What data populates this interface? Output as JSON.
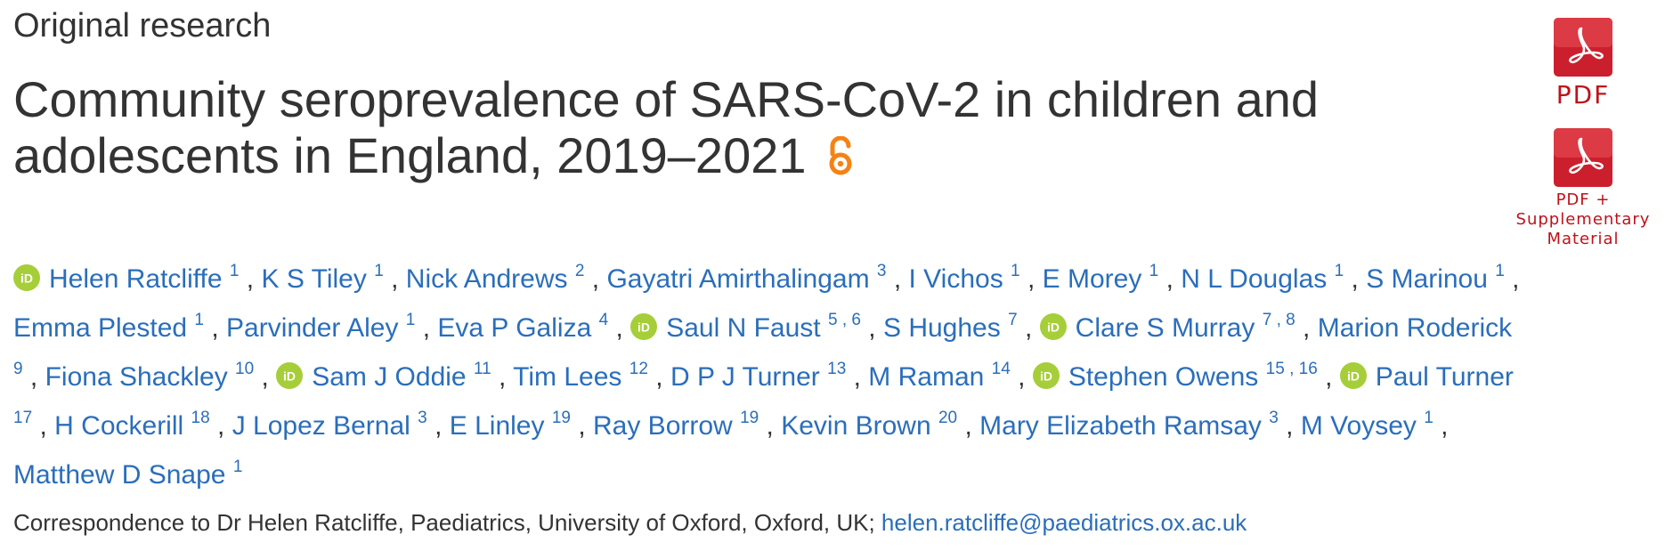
{
  "article_type": "Original research",
  "title_line1": "Community seroprevalence of SARS-CoV-2 in children and",
  "title_line2": "adolescents in England, 2019–2021",
  "pdf_label": "PDF",
  "pdf_supp_label_line1": "PDF +",
  "pdf_supp_label_line2": "Supplementary",
  "pdf_supp_label_line3": "Material",
  "icons": {
    "open_access": "open-access-icon",
    "orcid": "orcid-icon",
    "pdf": "pdf-icon"
  },
  "colors": {
    "link": "#2a6ebb",
    "orcid": "#a6ce39",
    "open_access": "#f68212",
    "pdf": "#c0111a"
  },
  "authors": [
    {
      "name": "Helen Ratcliffe",
      "aff": "1",
      "orcid": true
    },
    {
      "name": "K S Tiley",
      "aff": "1",
      "orcid": false
    },
    {
      "name": "Nick Andrews",
      "aff": "2",
      "orcid": false
    },
    {
      "name": "Gayatri Amirthalingam",
      "aff": "3",
      "orcid": false
    },
    {
      "name": "I Vichos",
      "aff": "1",
      "orcid": false
    },
    {
      "name": "E Morey",
      "aff": "1",
      "orcid": false
    },
    {
      "name": "N L Douglas",
      "aff": "1",
      "orcid": false
    },
    {
      "name": "S Marinou",
      "aff": "1",
      "orcid": false
    },
    {
      "name": "Emma Plested",
      "aff": "1",
      "orcid": false
    },
    {
      "name": "Parvinder Aley",
      "aff": "1",
      "orcid": false
    },
    {
      "name": "Eva P Galiza",
      "aff": "4",
      "orcid": false
    },
    {
      "name": "Saul N Faust",
      "aff": "5 , 6",
      "orcid": true
    },
    {
      "name": "S Hughes",
      "aff": "7",
      "orcid": false
    },
    {
      "name": "Clare S Murray",
      "aff": "7 , 8",
      "orcid": true
    },
    {
      "name": "Marion Roderick",
      "aff": "9",
      "orcid": false
    },
    {
      "name": "Fiona Shackley",
      "aff": "10",
      "orcid": false
    },
    {
      "name": "Sam J Oddie",
      "aff": "11",
      "orcid": true
    },
    {
      "name": "Tim Lees",
      "aff": "12",
      "orcid": false
    },
    {
      "name": "D P J Turner",
      "aff": "13",
      "orcid": false
    },
    {
      "name": "M Raman",
      "aff": "14",
      "orcid": false
    },
    {
      "name": "Stephen Owens",
      "aff": "15 , 16",
      "orcid": true
    },
    {
      "name": "Paul Turner",
      "aff": "17",
      "orcid": true
    },
    {
      "name": "H Cockerill",
      "aff": "18",
      "orcid": false
    },
    {
      "name": "J Lopez Bernal",
      "aff": "3",
      "orcid": false
    },
    {
      "name": "E Linley",
      "aff": "19",
      "orcid": false
    },
    {
      "name": "Ray Borrow",
      "aff": "19",
      "orcid": false
    },
    {
      "name": "Kevin Brown",
      "aff": "20",
      "orcid": false
    },
    {
      "name": "Mary Elizabeth Ramsay",
      "aff": "3",
      "orcid": false
    },
    {
      "name": "M Voysey",
      "aff": "1",
      "orcid": false
    },
    {
      "name": "Matthew D Snape",
      "aff": "1",
      "orcid": false
    }
  ],
  "correspondence": {
    "text": "Correspondence to Dr Helen Ratcliffe, Paediatrics, University of Oxford, Oxford, UK;",
    "email": "helen.ratcliffe@paediatrics.ox.ac.uk"
  }
}
